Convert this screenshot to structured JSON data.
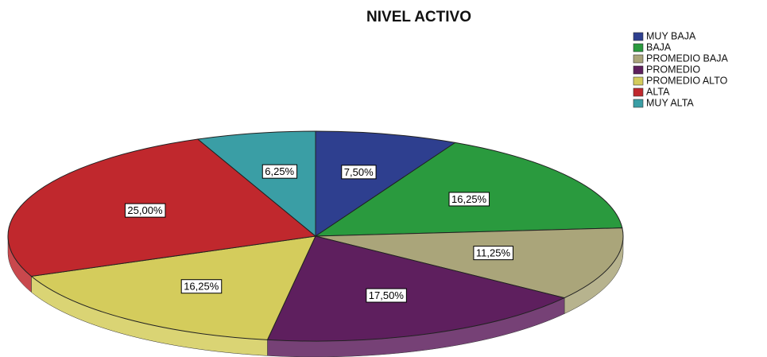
{
  "chart_data": {
    "type": "pie",
    "title": "NIVEL ACTIVO",
    "categories": [
      "MUY BAJA",
      "BAJA",
      "PROMEDIO BAJA",
      "PROMEDIO",
      "PROMEDIO ALTO",
      "ALTA",
      "MUY ALTA"
    ],
    "values": [
      7.5,
      16.25,
      11.25,
      17.5,
      16.25,
      25,
      6.25
    ],
    "value_labels": [
      "7,50%",
      "16,25%",
      "11,25%",
      "17,50%",
      "16,25%",
      "25,00%",
      "6,25%"
    ],
    "colors": [
      "#2e3f8f",
      "#2a9a3e",
      "#aaa57a",
      "#5e1f5e",
      "#d4cc5c",
      "#c0282d",
      "#3a9ea5"
    ],
    "legend": "top-right"
  }
}
